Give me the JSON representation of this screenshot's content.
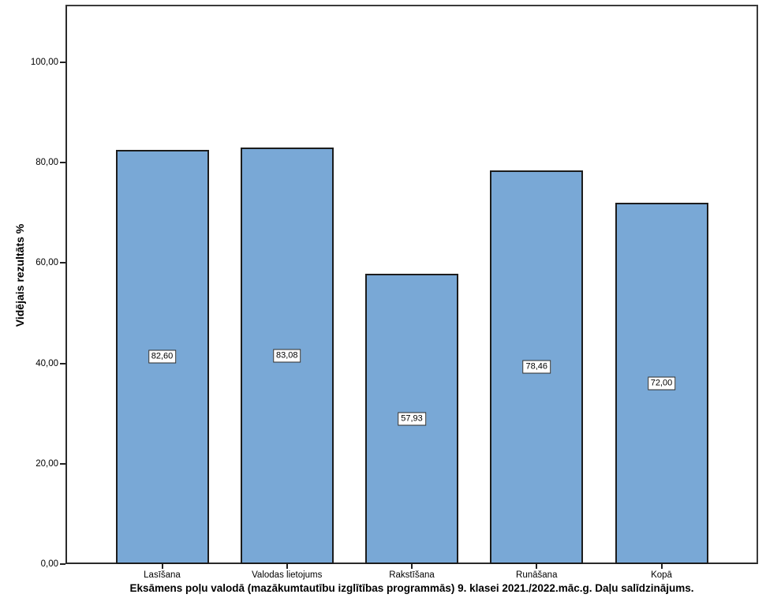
{
  "chart_data": {
    "type": "bar",
    "title": "Eksāmens poļu valodā (mazākumtautību izglītības programmās) 9. klasei 2021./2022.māc.g. Daļu salīdzinājums.",
    "ylabel": "Vidējais rezultāts %",
    "xlabel": "",
    "categories": [
      "Lasīšana",
      "Valodas lietojums",
      "Rakstīšana",
      "Runāšana",
      "Kopā"
    ],
    "values": [
      82.6,
      83.08,
      57.93,
      78.46,
      72.0
    ],
    "value_labels": [
      "82,60",
      "83,08",
      "57,93",
      "78,46",
      "72,00"
    ],
    "yticks": [
      0,
      20,
      40,
      60,
      80,
      100
    ],
    "ytick_labels": [
      "0,00",
      "20,00",
      "40,00",
      "60,00",
      "80,00",
      "100,00"
    ],
    "ylim": [
      0,
      111.5
    ],
    "grid": false,
    "legend": "none",
    "style": {
      "bar_fill": "#79A8D6",
      "bar_border": "#1c1c1c",
      "frame_color": "#3b3b3b",
      "background": "#ffffff",
      "text_color": "#000000"
    }
  }
}
